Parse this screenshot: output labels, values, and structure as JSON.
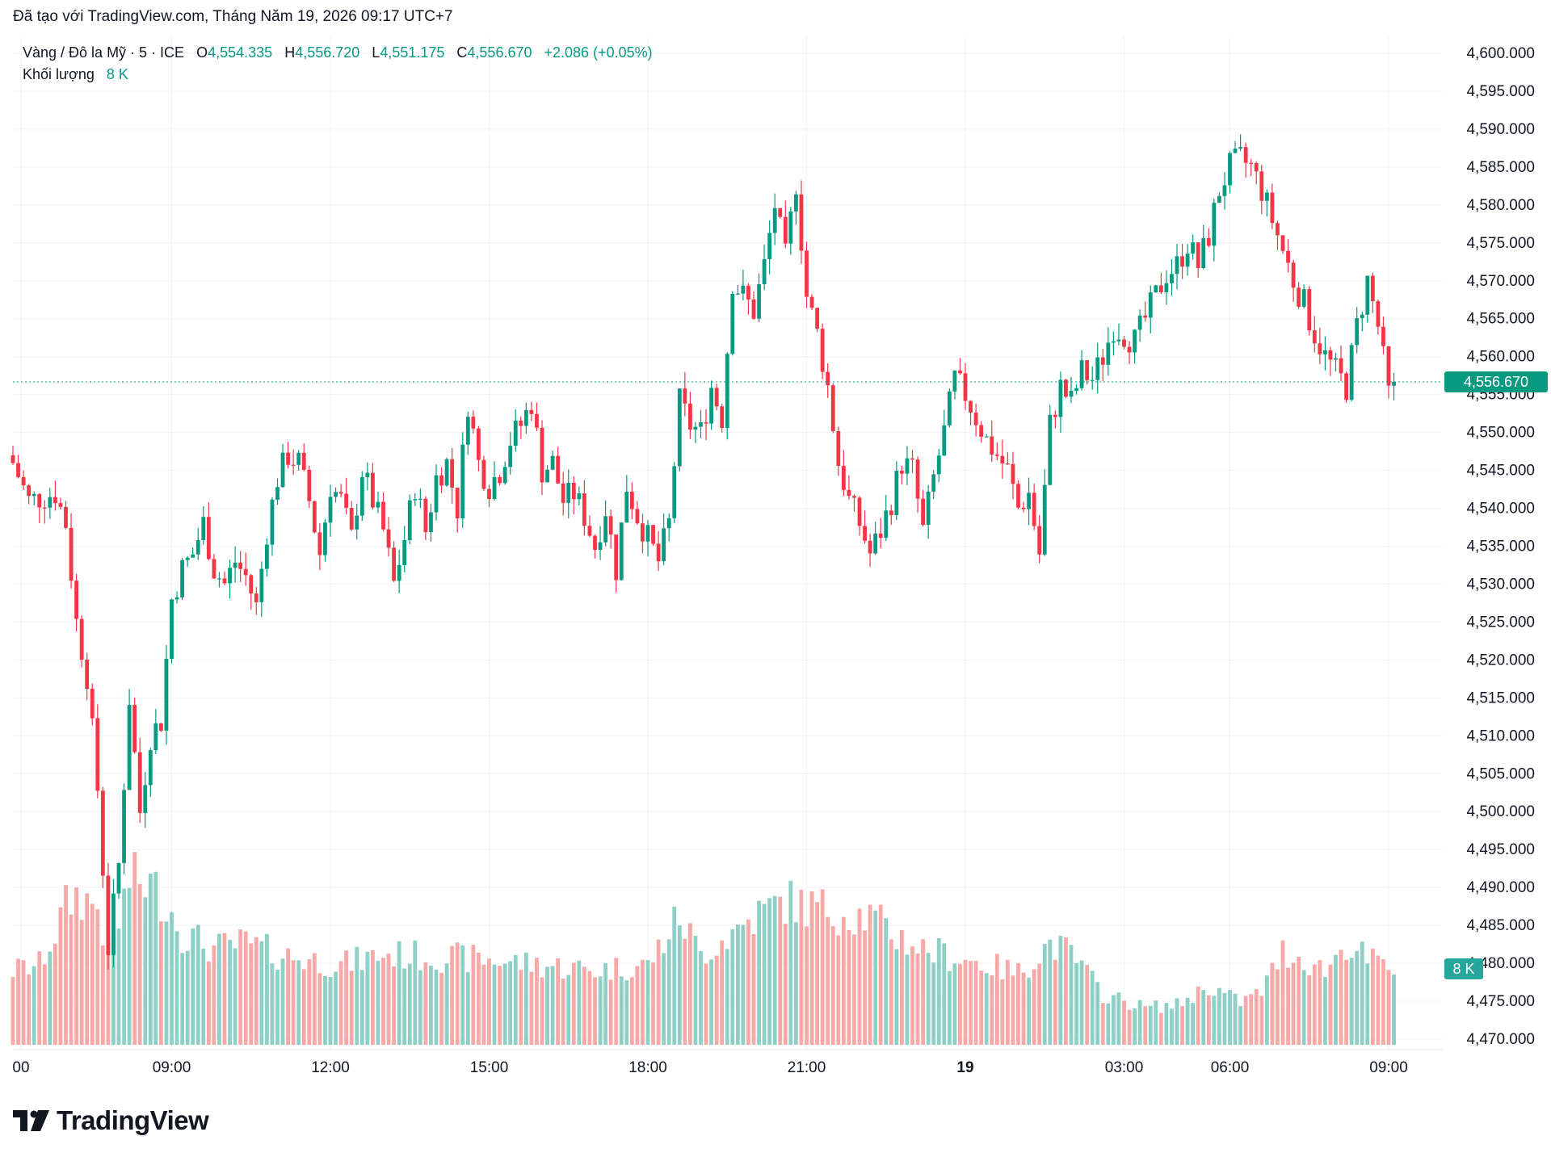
{
  "caption": "Đã tạo với TradingView.com, Tháng Năm 19, 2026 09:17 UTC+7",
  "legend": {
    "symbol": "Vàng / Đô la Mỹ · 5 · ICE",
    "open_label": "O",
    "open": "4,554.335",
    "high_label": "H",
    "high": "4,556.720",
    "low_label": "L",
    "low": "4,551.175",
    "close_label": "C",
    "close": "4,556.670",
    "change": "+2.086 (+0.05%)",
    "volume_label": "Khối lượng",
    "volume": "8 K"
  },
  "current_price_label": "4,556.670",
  "current_volume_label": "8 K",
  "logo_text": "TradingView",
  "icons": {
    "logo": "tradingview-logo-icon"
  },
  "colors": {
    "up": "#089981",
    "down": "#f23645",
    "vol_up": "#8fd0c6",
    "vol_down": "#f7a9a7"
  },
  "chart_data": {
    "type": "candlestick",
    "y_axis": {
      "min": 4470,
      "max": 4600,
      "step": 5,
      "tick_labels": [
        "4,600.000",
        "4,595.000",
        "4,590.000",
        "4,585.000",
        "4,580.000",
        "4,575.000",
        "4,570.000",
        "4,565.000",
        "4,560.000",
        "4,555.000",
        "4,550.000",
        "4,545.000",
        "4,540.000",
        "4,535.000",
        "4,530.000",
        "4,525.000",
        "4,520.000",
        "4,515.000",
        "4,510.000",
        "4,505.000",
        "4,500.000",
        "4,495.000",
        "4,490.000",
        "4,485.000",
        "4,480.000",
        "4,475.000",
        "4,470.000"
      ]
    },
    "x_axis": {
      "tick_labels": [
        "00",
        "09:00",
        "12:00",
        "15:00",
        "18:00",
        "21:00",
        "19",
        "03:00",
        "06:00",
        "09:00"
      ],
      "tick_bar_index": [
        0,
        30,
        60,
        90,
        120,
        150,
        180,
        210,
        230,
        260
      ]
    },
    "price_keypoints": [
      [
        0,
        4546
      ],
      [
        3,
        4541
      ],
      [
        8,
        4542
      ],
      [
        10,
        4538
      ],
      [
        12,
        4525
      ],
      [
        14,
        4518
      ],
      [
        16,
        4503
      ],
      [
        18,
        4482
      ],
      [
        20,
        4493
      ],
      [
        22,
        4515
      ],
      [
        24,
        4500
      ],
      [
        26,
        4510
      ],
      [
        28,
        4512
      ],
      [
        30,
        4528
      ],
      [
        32,
        4532
      ],
      [
        34,
        4534
      ],
      [
        36,
        4538
      ],
      [
        38,
        4532
      ],
      [
        40,
        4530
      ],
      [
        42,
        4533
      ],
      [
        44,
        4531
      ],
      [
        46,
        4527
      ],
      [
        48,
        4537
      ],
      [
        50,
        4544
      ],
      [
        52,
        4547
      ],
      [
        54,
        4546
      ],
      [
        56,
        4541
      ],
      [
        58,
        4534
      ],
      [
        60,
        4543
      ],
      [
        62,
        4541
      ],
      [
        64,
        4536
      ],
      [
        66,
        4545
      ],
      [
        68,
        4541
      ],
      [
        70,
        4537
      ],
      [
        72,
        4530
      ],
      [
        74,
        4536
      ],
      [
        76,
        4543
      ],
      [
        78,
        4537
      ],
      [
        80,
        4544
      ],
      [
        82,
        4546
      ],
      [
        84,
        4540
      ],
      [
        86,
        4554
      ],
      [
        88,
        4546
      ],
      [
        90,
        4543
      ],
      [
        92,
        4545
      ],
      [
        94,
        4549
      ],
      [
        96,
        4551
      ],
      [
        98,
        4554
      ],
      [
        100,
        4545
      ],
      [
        102,
        4546
      ],
      [
        104,
        4541
      ],
      [
        106,
        4542
      ],
      [
        108,
        4539
      ],
      [
        110,
        4535
      ],
      [
        112,
        4540
      ],
      [
        114,
        4532
      ],
      [
        116,
        4543
      ],
      [
        118,
        4539
      ],
      [
        120,
        4536
      ],
      [
        122,
        4533
      ],
      [
        124,
        4538
      ],
      [
        126,
        4554
      ],
      [
        128,
        4551
      ],
      [
        130,
        4550
      ],
      [
        132,
        4556
      ],
      [
        134,
        4552
      ],
      [
        136,
        4570
      ],
      [
        138,
        4568
      ],
      [
        140,
        4566
      ],
      [
        142,
        4572
      ],
      [
        144,
        4580
      ],
      [
        146,
        4573
      ],
      [
        148,
        4583
      ],
      [
        150,
        4568
      ],
      [
        152,
        4563
      ],
      [
        154,
        4556
      ],
      [
        156,
        4546
      ],
      [
        158,
        4541
      ],
      [
        160,
        4538
      ],
      [
        162,
        4534
      ],
      [
        164,
        4537
      ],
      [
        166,
        4541
      ],
      [
        168,
        4546
      ],
      [
        170,
        4545
      ],
      [
        172,
        4537
      ],
      [
        174,
        4544
      ],
      [
        176,
        4550
      ],
      [
        178,
        4557
      ],
      [
        180,
        4555
      ],
      [
        182,
        4552
      ],
      [
        184,
        4549
      ],
      [
        186,
        4547
      ],
      [
        188,
        4545
      ],
      [
        190,
        4540
      ],
      [
        192,
        4542
      ],
      [
        194,
        4534
      ],
      [
        196,
        4551
      ],
      [
        198,
        4556
      ],
      [
        200,
        4554
      ],
      [
        202,
        4558
      ],
      [
        204,
        4557
      ],
      [
        206,
        4560
      ],
      [
        208,
        4564
      ],
      [
        210,
        4563
      ],
      [
        212,
        4562
      ],
      [
        214,
        4565
      ],
      [
        216,
        4568
      ],
      [
        218,
        4571
      ],
      [
        220,
        4572
      ],
      [
        222,
        4575
      ],
      [
        224,
        4572
      ],
      [
        226,
        4576
      ],
      [
        228,
        4582
      ],
      [
        230,
        4585
      ],
      [
        232,
        4586
      ],
      [
        234,
        4585
      ],
      [
        236,
        4582
      ],
      [
        238,
        4578
      ],
      [
        240,
        4574
      ],
      [
        242,
        4570
      ],
      [
        244,
        4567
      ],
      [
        246,
        4563
      ],
      [
        248,
        4560
      ],
      [
        250,
        4558
      ],
      [
        252,
        4556
      ],
      [
        254,
        4564
      ],
      [
        256,
        4570
      ],
      [
        258,
        4564
      ],
      [
        260,
        4555
      ],
      [
        261,
        4556.67
      ]
    ],
    "volume_keypoints": [
      [
        0,
        28
      ],
      [
        5,
        30
      ],
      [
        8,
        42
      ],
      [
        10,
        52
      ],
      [
        12,
        56
      ],
      [
        16,
        52
      ],
      [
        18,
        34
      ],
      [
        20,
        46
      ],
      [
        22,
        62
      ],
      [
        26,
        60
      ],
      [
        28,
        56
      ],
      [
        30,
        50
      ],
      [
        32,
        42
      ],
      [
        38,
        36
      ],
      [
        44,
        38
      ],
      [
        50,
        34
      ],
      [
        56,
        32
      ],
      [
        62,
        30
      ],
      [
        70,
        34
      ],
      [
        80,
        33
      ],
      [
        90,
        32
      ],
      [
        100,
        30
      ],
      [
        110,
        28
      ],
      [
        120,
        30
      ],
      [
        126,
        48
      ],
      [
        130,
        34
      ],
      [
        136,
        42
      ],
      [
        140,
        48
      ],
      [
        146,
        54
      ],
      [
        150,
        52
      ],
      [
        156,
        50
      ],
      [
        162,
        48
      ],
      [
        166,
        42
      ],
      [
        172,
        36
      ],
      [
        178,
        33
      ],
      [
        184,
        30
      ],
      [
        190,
        27
      ],
      [
        196,
        38
      ],
      [
        200,
        34
      ],
      [
        206,
        19
      ],
      [
        214,
        14
      ],
      [
        220,
        15
      ],
      [
        226,
        22
      ],
      [
        232,
        16
      ],
      [
        236,
        20
      ],
      [
        240,
        35
      ],
      [
        244,
        32
      ],
      [
        248,
        28
      ],
      [
        252,
        38
      ],
      [
        256,
        32
      ],
      [
        260,
        29
      ]
    ]
  }
}
